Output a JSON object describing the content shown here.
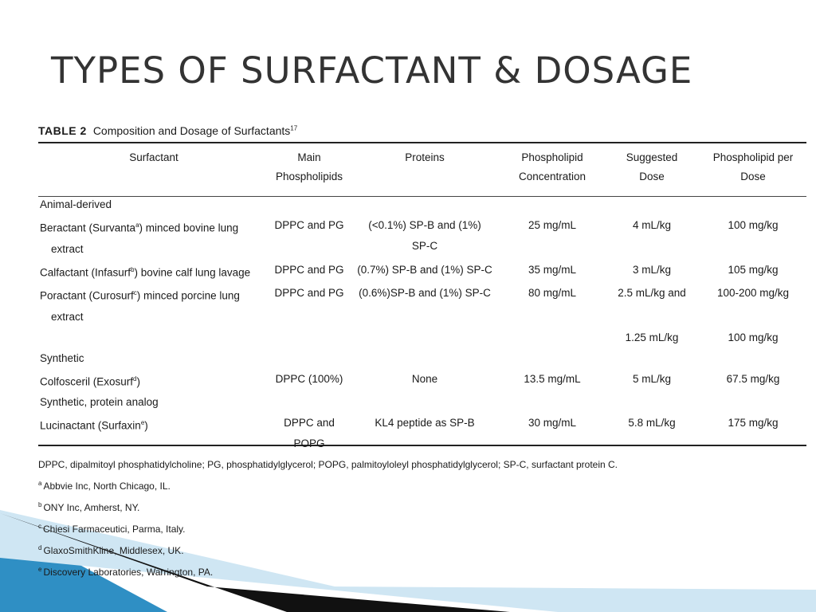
{
  "slide": {
    "title": "TYPES OF SURFACTANT & DOSAGE"
  },
  "table": {
    "caption_label": "TABLE 2",
    "caption_text": "Composition and Dosage of Surfactants",
    "caption_ref": "17",
    "headers": [
      [
        "Surfactant",
        ""
      ],
      [
        "Main",
        "Phospholipids"
      ],
      [
        "Proteins",
        ""
      ],
      [
        "Phospholipid",
        "Concentration"
      ],
      [
        "Suggested",
        "Dose"
      ],
      [
        "Phospholipid per",
        "Dose"
      ]
    ],
    "rows": [
      {
        "type": "group",
        "cells": [
          "Animal-derived"
        ]
      },
      {
        "type": "item",
        "name_main": "Beractant (Survanta",
        "name_sup": "a",
        "name_rest": ") minced bovine lung",
        "name_cont": "extract",
        "cells": [
          "DPPC and PG",
          "(<0.1%) SP-B and (1%)",
          "25 mg/mL",
          "4 mL/kg",
          "100 mg/kg"
        ],
        "protein_cont": "SP-C"
      },
      {
        "type": "item",
        "name_main": "Calfactant (Infasurf",
        "name_sup": "b",
        "name_rest": ") bovine calf lung lavage",
        "name_cont": "",
        "cells": [
          "DPPC and PG",
          "(0.7%) SP-B and (1%) SP-C",
          "35 mg/mL",
          "3 mL/kg",
          "105 mg/kg"
        ],
        "protein_cont": ""
      },
      {
        "type": "item",
        "name_main": "Poractant (Curosurf",
        "name_sup": "c",
        "name_rest": ") minced porcine lung",
        "name_cont": "extract",
        "cells": [
          "DPPC and PG",
          "(0.6%)SP-B and (1%) SP-C",
          "80 mg/mL",
          "2.5 mL/kg and",
          "100-200 mg/kg"
        ],
        "protein_cont": ""
      },
      {
        "type": "extra",
        "cells": [
          "",
          "",
          "",
          "1.25 mL/kg",
          "100 mg/kg"
        ]
      },
      {
        "type": "group",
        "cells": [
          "Synthetic"
        ]
      },
      {
        "type": "item",
        "name_main": "Colfosceril (Exosurf",
        "name_sup": "d",
        "name_rest": ")",
        "name_cont": "",
        "cells": [
          "DPPC (100%)",
          "None",
          "13.5 mg/mL",
          "5 mL/kg",
          "67.5 mg/kg"
        ],
        "protein_cont": ""
      },
      {
        "type": "group",
        "cells": [
          "Synthetic, protein analog"
        ]
      },
      {
        "type": "item",
        "name_main": "Lucinactant (Surfaxin",
        "name_sup": "e",
        "name_rest": ")",
        "name_cont": "",
        "cells": [
          "DPPC and POPG",
          "KL4 peptide as SP-B",
          "30 mg/mL",
          "5.8 mL/kg",
          "175 mg/kg"
        ],
        "protein_cont": ""
      }
    ],
    "abbreviations": "DPPC, dipalmitoyl phosphatidylcholine; PG, phosphatidylglycerol; POPG, palmitoyloleyl phosphatidylglycerol; SP-C, surfactant protein C.",
    "footnotes": [
      {
        "mark": "a",
        "text": "Abbvie Inc, North Chicago, IL."
      },
      {
        "mark": "b",
        "text": "ONY Inc, Amherst, NY."
      },
      {
        "mark": "c",
        "text": "Chiesi Farmaceutici, Parma, Italy."
      },
      {
        "mark": "d",
        "text": "GlaxoSmithKline, Middlesex, UK."
      },
      {
        "mark": "e",
        "text": "Discovery Laboratories, Warrington, PA."
      }
    ]
  },
  "colors": {
    "title": "#333333",
    "swoosh_dark": "#111111",
    "swoosh_blue": "#2f8fc4",
    "swoosh_light": "#cfe6f3"
  }
}
